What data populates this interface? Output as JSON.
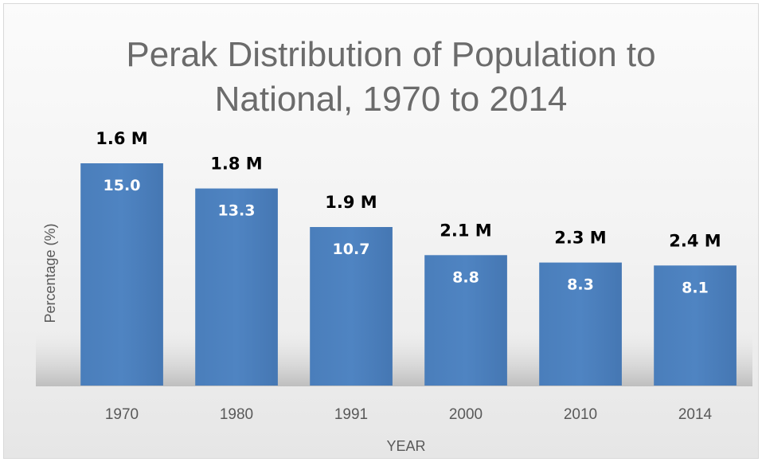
{
  "chart_data": {
    "type": "bar",
    "title": [
      "Perak Distribution of Population to",
      "National, 1970 to 2014"
    ],
    "xlabel": "YEAR",
    "ylabel": "Percentage (%)",
    "categories": [
      "1970",
      "1980",
      "1991",
      "2000",
      "2010",
      "2014"
    ],
    "series": [
      {
        "values": [
          15.0,
          13.3,
          10.7,
          8.8,
          8.3,
          8.1
        ],
        "data_labels": [
          "15.0",
          "13.3",
          "10.7",
          "8.8",
          "8.3",
          "8.1"
        ]
      }
    ],
    "annotations": [
      "1.6 M",
      "1.8 M",
      "1.9 M",
      "2.1 M",
      "2.3 M",
      "2.4 M"
    ],
    "ylim": [
      0,
      18
    ],
    "grid": false,
    "legend": "none",
    "bar_color": "#4a7ebb"
  }
}
